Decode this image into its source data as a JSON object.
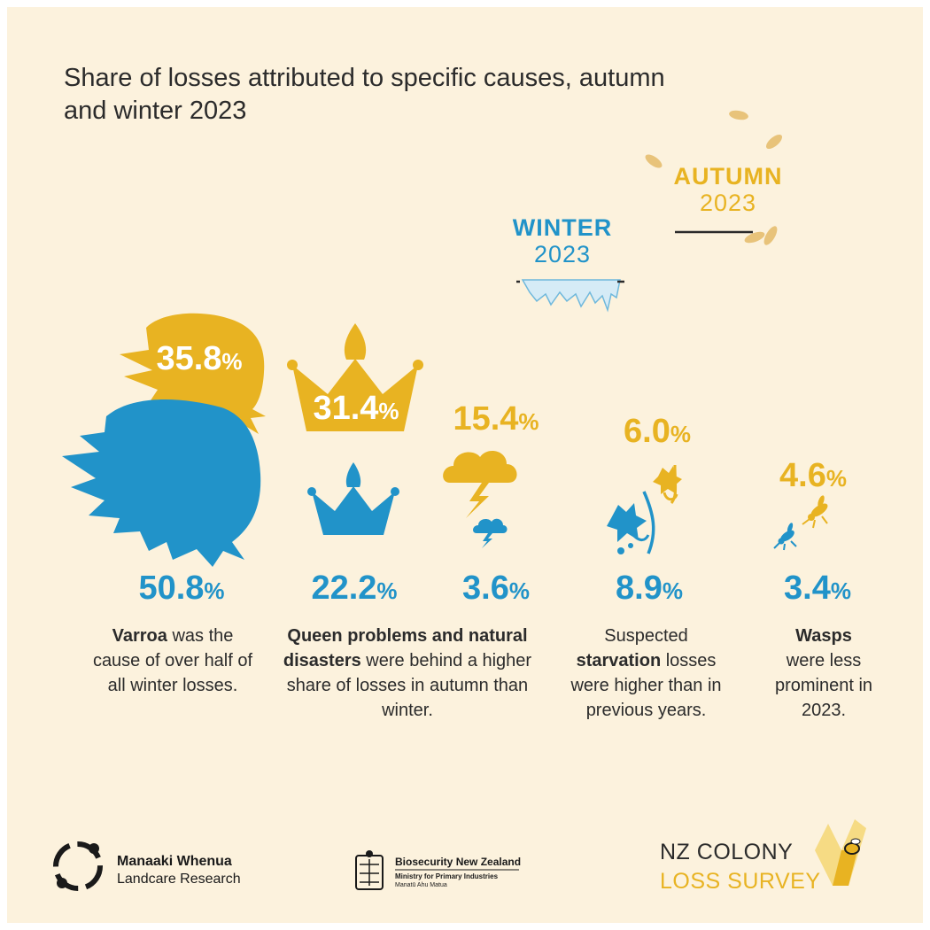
{
  "title": "Share of losses attributed to specific causes, autumn and winter 2023",
  "colors": {
    "autumn": "#e8b322",
    "winter": "#2193c9",
    "background": "#fcf2dd",
    "text": "#2b2b2b"
  },
  "legend": {
    "autumn_word": "AUTUMN",
    "autumn_year": "2023",
    "winter_word": "WINTER",
    "winter_year": "2023"
  },
  "chart_data": {
    "type": "table",
    "title": "Share of losses attributed to specific causes, autumn and winter 2023",
    "unit": "%",
    "categories": [
      "Varroa",
      "Queen problems",
      "Natural disasters",
      "Suspected starvation",
      "Wasps"
    ],
    "series": [
      {
        "name": "Autumn 2023",
        "values": [
          35.8,
          31.4,
          15.4,
          6.0,
          4.6
        ]
      },
      {
        "name": "Winter 2023",
        "values": [
          50.8,
          22.2,
          3.6,
          8.9,
          3.4
        ]
      }
    ],
    "labels": {
      "autumn": [
        "35.8",
        "31.4",
        "15.4",
        "6.0",
        "4.6"
      ],
      "winter": [
        "50.8",
        "22.2",
        "3.6",
        "8.9",
        "3.4"
      ],
      "percent_sign": "%"
    }
  },
  "captions": {
    "varroa": {
      "bold": "Varroa",
      "rest": " was the cause of over half of all winter losses."
    },
    "queen": {
      "bold": "Queen problems and natural disasters",
      "rest": " were behind a higher share of losses in autumn than winter."
    },
    "starvation": {
      "pre": "Suspected ",
      "bold": "starvation",
      "rest": " losses were higher than in previous years."
    },
    "wasps": {
      "bold": "Wasps",
      "rest": " were less prominent in 2023."
    }
  },
  "footer": {
    "manaaki_line1": "Manaaki Whenua",
    "manaaki_line2": "Landcare Research",
    "biosecurity_line1": "Biosecurity New Zealand",
    "biosecurity_line2": "Ministry for Primary Industries",
    "biosecurity_line3": "Manatū Ahu Matua",
    "survey_line1": "NZ COLONY",
    "survey_line2": "LOSS SURVEY"
  },
  "icons": [
    "varroa-mite-icon",
    "crown-icon",
    "storm-cloud-icon",
    "wilted-flower-icon",
    "wasp-icon",
    "leaf-icon",
    "icicle-icon",
    "honeycomb-bee-icon"
  ]
}
